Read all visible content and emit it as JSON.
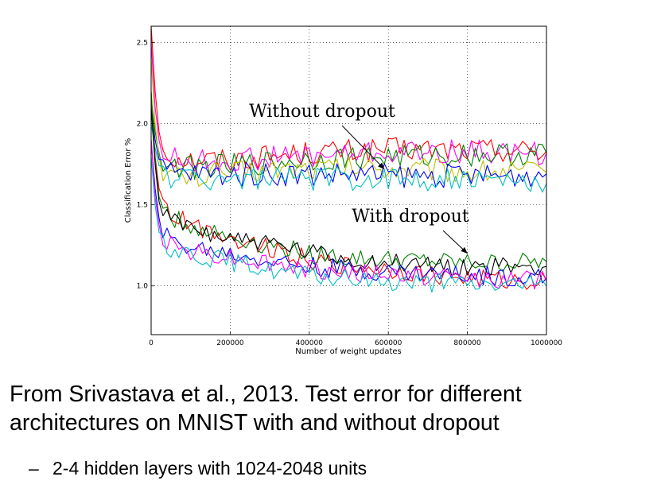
{
  "chart_data": {
    "type": "line",
    "xlabel": "Number of weight updates",
    "ylabel": "Classification Error %",
    "xlim": [
      0,
      1000000
    ],
    "ylim": [
      0.7,
      2.6
    ],
    "xticks": [
      0,
      200000,
      400000,
      600000,
      800000,
      1000000
    ],
    "xtick_labels": [
      "0",
      "200000",
      "400000",
      "600000",
      "800000",
      "1000000"
    ],
    "yticks": [
      1.0,
      1.5,
      2.0,
      2.5
    ],
    "ytick_labels": [
      "1.0",
      "1.5",
      "2.0",
      "2.5"
    ],
    "grid": true,
    "annotations": [
      {
        "text": "Without dropout",
        "arrow_to": [
          590000,
          1.72
        ]
      },
      {
        "text": "With dropout",
        "arrow_to": [
          800000,
          1.2
        ]
      }
    ],
    "series": [
      {
        "group": "without",
        "color": "#ff0000",
        "x": [
          0,
          10000,
          20000,
          30000,
          50000,
          100000,
          200000,
          300000,
          400000,
          500000,
          600000,
          700000,
          800000,
          900000,
          1000000
        ],
        "y": [
          2.6,
          2.2,
          1.95,
          1.85,
          1.8,
          1.78,
          1.78,
          1.8,
          1.82,
          1.83,
          1.84,
          1.84,
          1.84,
          1.84,
          1.83
        ]
      },
      {
        "group": "without",
        "color": "#ff00ff",
        "x": [
          0,
          10000,
          20000,
          30000,
          50000,
          100000,
          200000,
          300000,
          400000,
          500000,
          600000,
          700000,
          800000,
          900000,
          1000000
        ],
        "y": [
          2.5,
          2.1,
          1.9,
          1.82,
          1.79,
          1.77,
          1.77,
          1.79,
          1.8,
          1.81,
          1.82,
          1.82,
          1.83,
          1.82,
          1.82
        ]
      },
      {
        "group": "without",
        "color": "#008000",
        "x": [
          0,
          10000,
          20000,
          30000,
          50000,
          100000,
          200000,
          300000,
          400000,
          500000,
          600000,
          700000,
          800000,
          900000,
          1000000
        ],
        "y": [
          2.15,
          1.95,
          1.82,
          1.76,
          1.74,
          1.73,
          1.74,
          1.76,
          1.78,
          1.79,
          1.8,
          1.8,
          1.81,
          1.81,
          1.82
        ]
      },
      {
        "group": "without",
        "color": "#bfbf00",
        "x": [
          0,
          10000,
          20000,
          30000,
          50000,
          100000,
          200000,
          300000,
          400000,
          500000,
          600000,
          700000,
          800000,
          900000,
          1000000
        ],
        "y": [
          2.4,
          2.0,
          1.8,
          1.72,
          1.68,
          1.67,
          1.7,
          1.72,
          1.73,
          1.73,
          1.73,
          1.72,
          1.71,
          1.71,
          1.7
        ]
      },
      {
        "group": "without",
        "color": "#0000ff",
        "x": [
          0,
          10000,
          20000,
          30000,
          50000,
          100000,
          200000,
          300000,
          400000,
          500000,
          600000,
          700000,
          800000,
          900000,
          1000000
        ],
        "y": [
          2.1,
          1.9,
          1.78,
          1.72,
          1.7,
          1.69,
          1.69,
          1.69,
          1.69,
          1.69,
          1.68,
          1.68,
          1.68,
          1.68,
          1.69
        ]
      },
      {
        "group": "without",
        "color": "#00bfbf",
        "x": [
          0,
          10000,
          20000,
          30000,
          50000,
          100000,
          200000,
          300000,
          400000,
          500000,
          600000,
          700000,
          800000,
          900000,
          1000000
        ],
        "y": [
          2.0,
          1.85,
          1.74,
          1.7,
          1.67,
          1.66,
          1.66,
          1.66,
          1.66,
          1.66,
          1.66,
          1.66,
          1.65,
          1.64,
          1.63
        ]
      },
      {
        "group": "with",
        "color": "#ff0000",
        "x": [
          0,
          10000,
          20000,
          30000,
          50000,
          100000,
          200000,
          300000,
          400000,
          500000,
          600000,
          700000,
          800000,
          900000,
          1000000
        ],
        "y": [
          2.2,
          1.8,
          1.6,
          1.52,
          1.44,
          1.38,
          1.3,
          1.24,
          1.16,
          1.12,
          1.1,
          1.07,
          1.05,
          1.03,
          1.03
        ]
      },
      {
        "group": "with",
        "color": "#008000",
        "x": [
          0,
          10000,
          20000,
          30000,
          50000,
          100000,
          200000,
          300000,
          400000,
          500000,
          600000,
          700000,
          800000,
          900000,
          1000000
        ],
        "y": [
          2.2,
          1.78,
          1.55,
          1.48,
          1.42,
          1.37,
          1.3,
          1.25,
          1.2,
          1.17,
          1.16,
          1.15,
          1.14,
          1.14,
          1.15
        ]
      },
      {
        "group": "with",
        "color": "#000000",
        "x": [
          0,
          10000,
          20000,
          30000,
          50000,
          100000,
          200000,
          300000,
          400000,
          500000,
          600000,
          700000,
          800000,
          900000,
          1000000
        ],
        "y": [
          2.1,
          1.75,
          1.52,
          1.45,
          1.4,
          1.36,
          1.3,
          1.26,
          1.2,
          1.16,
          1.14,
          1.13,
          1.12,
          1.12,
          1.12
        ]
      },
      {
        "group": "with",
        "color": "#0000ff",
        "x": [
          0,
          10000,
          20000,
          30000,
          50000,
          100000,
          200000,
          300000,
          400000,
          500000,
          600000,
          700000,
          800000,
          900000,
          1000000
        ],
        "y": [
          1.9,
          1.6,
          1.42,
          1.33,
          1.27,
          1.24,
          1.2,
          1.16,
          1.12,
          1.1,
          1.09,
          1.08,
          1.07,
          1.06,
          1.05
        ]
      },
      {
        "group": "with",
        "color": "#ff00ff",
        "x": [
          0,
          10000,
          20000,
          30000,
          50000,
          100000,
          200000,
          300000,
          400000,
          500000,
          600000,
          700000,
          800000,
          900000,
          1000000
        ],
        "y": [
          1.9,
          1.55,
          1.38,
          1.3,
          1.26,
          1.22,
          1.18,
          1.14,
          1.1,
          1.08,
          1.07,
          1.06,
          1.05,
          1.04,
          1.03
        ]
      },
      {
        "group": "with",
        "color": "#00bfbf",
        "x": [
          0,
          10000,
          20000,
          30000,
          50000,
          100000,
          200000,
          300000,
          400000,
          500000,
          600000,
          700000,
          800000,
          900000,
          1000000
        ],
        "y": [
          1.8,
          1.5,
          1.33,
          1.26,
          1.23,
          1.2,
          1.15,
          1.1,
          1.06,
          1.04,
          1.03,
          1.02,
          1.01,
          1.01,
          1.0
        ]
      }
    ]
  },
  "caption": {
    "line1": "From Srivastava et al., 2013.  Test error for different",
    "line2": "architectures on MNIST with and without dropout",
    "bullet_dash": "–",
    "bullet": "2-4 hidden layers with 1024-2048 units"
  }
}
